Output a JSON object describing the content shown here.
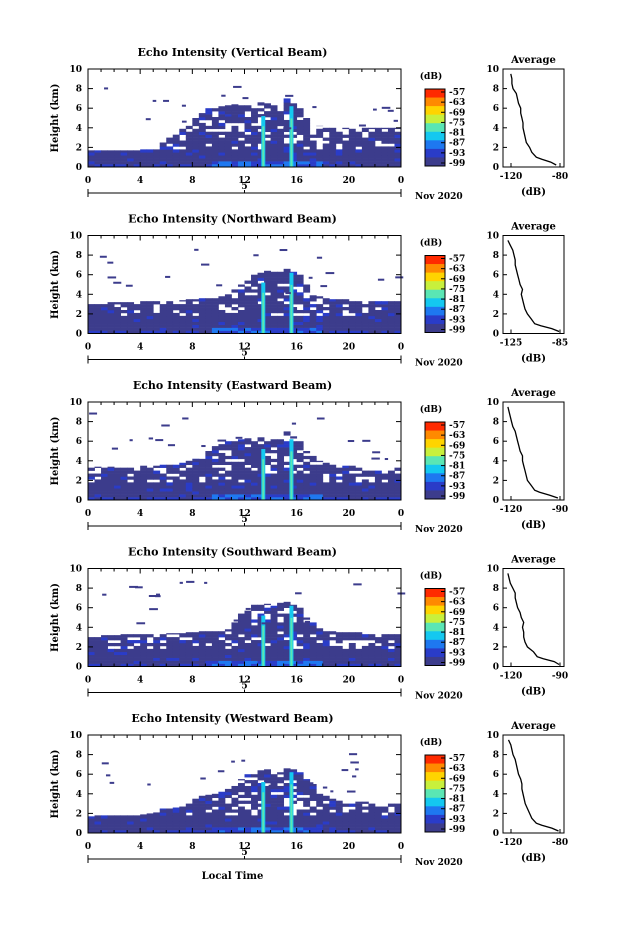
{
  "chart_data": [
    {
      "type": "heatmap",
      "title": "Echo Intensity (Vertical Beam)",
      "ylabel": "Height (km)",
      "x_ticks": [
        "0",
        "4",
        "8",
        "12",
        "16",
        "20",
        "0"
      ],
      "y_ticks": [
        "0",
        "2",
        "4",
        "6",
        "8",
        "10"
      ],
      "xlim": [
        0,
        24
      ],
      "ylim": [
        0,
        10
      ],
      "date_tick": "5",
      "date_label": "Nov 2020",
      "colorbar": {
        "unit": "(dB)",
        "ticks": [
          "-57",
          "-63",
          "-69",
          "-75",
          "-81",
          "-87",
          "-93",
          "-99"
        ]
      },
      "echo_top_profile": [
        1.7,
        1.7,
        1.7,
        1.7,
        1.7,
        1.7,
        1.7,
        1.7,
        1.8,
        1.8,
        2.0,
        2.5,
        3.0,
        3.5,
        4.0,
        4.5,
        5.0,
        5.5,
        6.0,
        6.0,
        6.2,
        6.4,
        6.4,
        6.4,
        6.3,
        6.2,
        6.6,
        6.5,
        6.3,
        6.0,
        7.0,
        6.5,
        6.0,
        5.0,
        4.5,
        4.2,
        4.0,
        4.0,
        4.0,
        4.0,
        4.0,
        4.0,
        4.0,
        4.0,
        4.0,
        4.0,
        4.0,
        4.0
      ],
      "average_profile": {
        "title": "Average",
        "xlabel": "(dB)",
        "x_ticks": [
          "-120",
          "-80"
        ],
        "y_ticks": [
          "0",
          "2",
          "4",
          "6",
          "8",
          "10"
        ],
        "xlim": [
          -130,
          -75
        ],
        "ylim": [
          0,
          10
        ],
        "height_km": [
          0.2,
          0.5,
          0.8,
          1.0,
          1.5,
          2.0,
          2.5,
          3.0,
          3.5,
          4.0,
          4.5,
          5.0,
          5.5,
          6.0,
          6.5,
          7.0,
          7.5,
          8.0,
          8.5,
          9.0,
          9.5
        ],
        "value_db": [
          -82,
          -87,
          -95,
          -100,
          -104,
          -106,
          -109,
          -110,
          -111,
          -112,
          -112,
          -113,
          -114,
          -114,
          -116,
          -117,
          -118,
          -121,
          -122,
          -122,
          -123
        ]
      }
    },
    {
      "type": "heatmap",
      "title": "Echo Intensity (Northward Beam)",
      "ylabel": "Height (km)",
      "x_ticks": [
        "0",
        "4",
        "8",
        "12",
        "16",
        "20",
        "0"
      ],
      "y_ticks": [
        "0",
        "2",
        "4",
        "6",
        "8",
        "10"
      ],
      "xlim": [
        0,
        24
      ],
      "ylim": [
        0,
        10
      ],
      "date_tick": "5",
      "date_label": "Nov 2020",
      "colorbar": {
        "unit": "(dB)",
        "ticks": [
          "-57",
          "-63",
          "-69",
          "-75",
          "-81",
          "-87",
          "-93",
          "-99"
        ]
      },
      "echo_top_profile": [
        3.0,
        3.2,
        3.2,
        3.2,
        3.2,
        3.2,
        3.2,
        3.3,
        3.3,
        3.3,
        3.3,
        3.3,
        3.3,
        3.3,
        3.4,
        3.5,
        3.5,
        3.6,
        3.6,
        3.6,
        3.8,
        4.0,
        4.5,
        5.0,
        5.5,
        6.0,
        6.2,
        6.4,
        6.3,
        6.4,
        6.6,
        6.3,
        6.0,
        5.0,
        4.0,
        3.8,
        3.6,
        3.5,
        3.5,
        3.5,
        3.3,
        3.3,
        3.3,
        3.3,
        3.3,
        3.3,
        3.3,
        3.3
      ],
      "average_profile": {
        "title": "Average",
        "xlabel": "(dB)",
        "x_ticks": [
          "-125",
          "-85"
        ],
        "y_ticks": [
          "0",
          "2",
          "4",
          "6",
          "8",
          "10"
        ],
        "xlim": [
          -130,
          -80
        ],
        "ylim": [
          0,
          10
        ],
        "height_km": [
          0.2,
          0.5,
          0.8,
          1.0,
          1.5,
          2.0,
          2.5,
          3.0,
          3.5,
          4.0,
          4.5,
          5.0,
          5.5,
          6.0,
          6.5,
          7.0,
          7.5,
          8.0,
          8.5,
          9.0,
          9.5
        ],
        "value_db": [
          -84,
          -90,
          -99,
          -104,
          -107,
          -110,
          -112,
          -113,
          -114,
          -115,
          -114,
          -116,
          -117,
          -118,
          -119,
          -120,
          -120,
          -121,
          -122,
          -124,
          -126
        ]
      }
    },
    {
      "type": "heatmap",
      "title": "Echo Intensity (Eastward Beam)",
      "ylabel": "Height (km)",
      "x_ticks": [
        "0",
        "4",
        "8",
        "12",
        "16",
        "20",
        "0"
      ],
      "y_ticks": [
        "0",
        "2",
        "4",
        "6",
        "8",
        "10"
      ],
      "xlim": [
        0,
        24
      ],
      "ylim": [
        0,
        10
      ],
      "date_tick": "5",
      "date_label": "Nov 2020",
      "colorbar": {
        "unit": "(dB)",
        "ticks": [
          "-57",
          "-63",
          "-69",
          "-75",
          "-81",
          "-87",
          "-93",
          "-99"
        ]
      },
      "echo_top_profile": [
        3.3,
        3.4,
        3.4,
        3.4,
        3.3,
        3.3,
        3.3,
        3.3,
        3.5,
        3.5,
        3.5,
        3.6,
        3.6,
        3.7,
        3.8,
        4.0,
        4.2,
        4.5,
        5.0,
        5.5,
        5.8,
        6.0,
        6.0,
        6.2,
        6.3,
        6.0,
        6.4,
        6.6,
        6.2,
        6.2,
        7.0,
        6.5,
        6.0,
        5.0,
        4.5,
        4.0,
        3.8,
        3.6,
        3.5,
        3.5,
        3.5,
        3.3,
        3.3,
        3.3,
        3.3,
        3.3,
        3.3,
        3.3
      ],
      "average_profile": {
        "title": "Average",
        "xlabel": "(dB)",
        "x_ticks": [
          "-120",
          "-90"
        ],
        "y_ticks": [
          "0",
          "2",
          "4",
          "6",
          "8",
          "10"
        ],
        "xlim": [
          -130,
          -80
        ],
        "ylim": [
          0,
          10
        ],
        "height_km": [
          0.2,
          0.5,
          0.8,
          1.0,
          1.5,
          2.0,
          2.5,
          3.0,
          3.5,
          4.0,
          4.5,
          5.0,
          5.5,
          6.0,
          6.5,
          7.0,
          7.5,
          8.0,
          8.5,
          9.0,
          9.5
        ],
        "value_db": [
          -85,
          -92,
          -100,
          -104,
          -107,
          -110,
          -111,
          -112,
          -113,
          -114,
          -114,
          -116,
          -117,
          -118,
          -119,
          -120,
          -122,
          -123,
          -124,
          -125,
          -126
        ]
      }
    },
    {
      "type": "heatmap",
      "title": "Echo Intensity (Southward Beam)",
      "ylabel": "Height (km)",
      "x_ticks": [
        "0",
        "4",
        "8",
        "12",
        "16",
        "20",
        "0"
      ],
      "y_ticks": [
        "0",
        "2",
        "4",
        "6",
        "8",
        "10"
      ],
      "xlim": [
        0,
        24
      ],
      "ylim": [
        0,
        10
      ],
      "date_tick": "5",
      "date_label": "Nov 2020",
      "colorbar": {
        "unit": "(dB)",
        "ticks": [
          "-57",
          "-63",
          "-69",
          "-75",
          "-81",
          "-87",
          "-93",
          "-99"
        ]
      },
      "echo_top_profile": [
        3.0,
        3.2,
        3.2,
        3.2,
        3.2,
        3.3,
        3.3,
        3.3,
        3.3,
        3.3,
        3.3,
        3.3,
        3.4,
        3.4,
        3.4,
        3.5,
        3.5,
        3.6,
        3.6,
        3.6,
        3.6,
        3.8,
        4.5,
        5.5,
        6.0,
        6.3,
        6.3,
        6.4,
        6.2,
        6.5,
        6.6,
        6.3,
        6.0,
        5.0,
        4.5,
        4.0,
        3.8,
        3.6,
        3.5,
        3.5,
        3.5,
        3.5,
        3.3,
        3.3,
        3.3,
        3.3,
        3.3,
        3.3
      ],
      "average_profile": {
        "title": "Average",
        "xlabel": "(dB)",
        "x_ticks": [
          "-120",
          "-90"
        ],
        "y_ticks": [
          "0",
          "2",
          "4",
          "6",
          "8",
          "10"
        ],
        "xlim": [
          -130,
          -80
        ],
        "ylim": [
          0,
          10
        ],
        "height_km": [
          0.2,
          0.5,
          0.8,
          1.0,
          1.5,
          2.0,
          2.5,
          3.0,
          3.5,
          4.0,
          4.5,
          5.0,
          5.5,
          6.0,
          6.5,
          7.0,
          7.5,
          8.0,
          8.5,
          9.0,
          9.5
        ],
        "value_db": [
          -84,
          -88,
          -97,
          -102,
          -105,
          -110,
          -112,
          -113,
          -113,
          -114,
          -113,
          -115,
          -116,
          -118,
          -119,
          -120,
          -120,
          -122,
          -124,
          -125,
          -126
        ]
      }
    },
    {
      "type": "heatmap",
      "title": "Echo Intensity (Westward Beam)",
      "ylabel": "Height (km)",
      "xlabel": "Local Time",
      "x_ticks": [
        "0",
        "4",
        "8",
        "12",
        "16",
        "20",
        "0"
      ],
      "y_ticks": [
        "0",
        "2",
        "4",
        "6",
        "8",
        "10"
      ],
      "xlim": [
        0,
        24
      ],
      "ylim": [
        0,
        10
      ],
      "date_tick": "5",
      "date_label": "Nov 2020",
      "colorbar": {
        "unit": "(dB)",
        "ticks": [
          "-57",
          "-63",
          "-69",
          "-75",
          "-81",
          "-87",
          "-93",
          "-99"
        ]
      },
      "echo_top_profile": [
        1.7,
        1.8,
        1.8,
        1.8,
        1.8,
        1.8,
        1.8,
        1.8,
        1.9,
        2.0,
        2.2,
        2.5,
        2.5,
        2.6,
        2.8,
        3.0,
        3.5,
        3.8,
        4.0,
        4.0,
        4.2,
        4.5,
        5.0,
        5.5,
        6.0,
        6.0,
        6.4,
        6.5,
        6.3,
        6.2,
        6.6,
        6.5,
        6.2,
        5.5,
        5.0,
        4.0,
        3.8,
        3.5,
        3.3,
        3.3,
        3.2,
        3.2,
        3.2,
        3.2,
        3.0,
        3.0,
        3.0,
        3.0
      ],
      "average_profile": {
        "title": "Average",
        "xlabel": "(dB)",
        "x_ticks": [
          "-120",
          "-80"
        ],
        "y_ticks": [
          "0",
          "2",
          "4",
          "6",
          "8",
          "10"
        ],
        "xlim": [
          -130,
          -75
        ],
        "ylim": [
          0,
          10
        ],
        "height_km": [
          0.2,
          0.5,
          0.8,
          1.0,
          1.5,
          2.0,
          2.5,
          3.0,
          3.5,
          4.0,
          4.5,
          5.0,
          5.5,
          6.0,
          6.5,
          7.0,
          7.5,
          8.0,
          8.5,
          9.0,
          9.5
        ],
        "value_db": [
          -80,
          -86,
          -95,
          -100,
          -104,
          -106,
          -108,
          -110,
          -111,
          -112,
          -113,
          -113,
          -114,
          -116,
          -117,
          -118,
          -119,
          -121,
          -122,
          -123,
          -125
        ]
      }
    }
  ],
  "colorbar_colors": [
    "#ff2a00",
    "#ff8a00",
    "#ffd400",
    "#c8f03c",
    "#5ae6b4",
    "#14c8f0",
    "#1e78f0",
    "#2a3cc8",
    "#3c3c8c"
  ]
}
